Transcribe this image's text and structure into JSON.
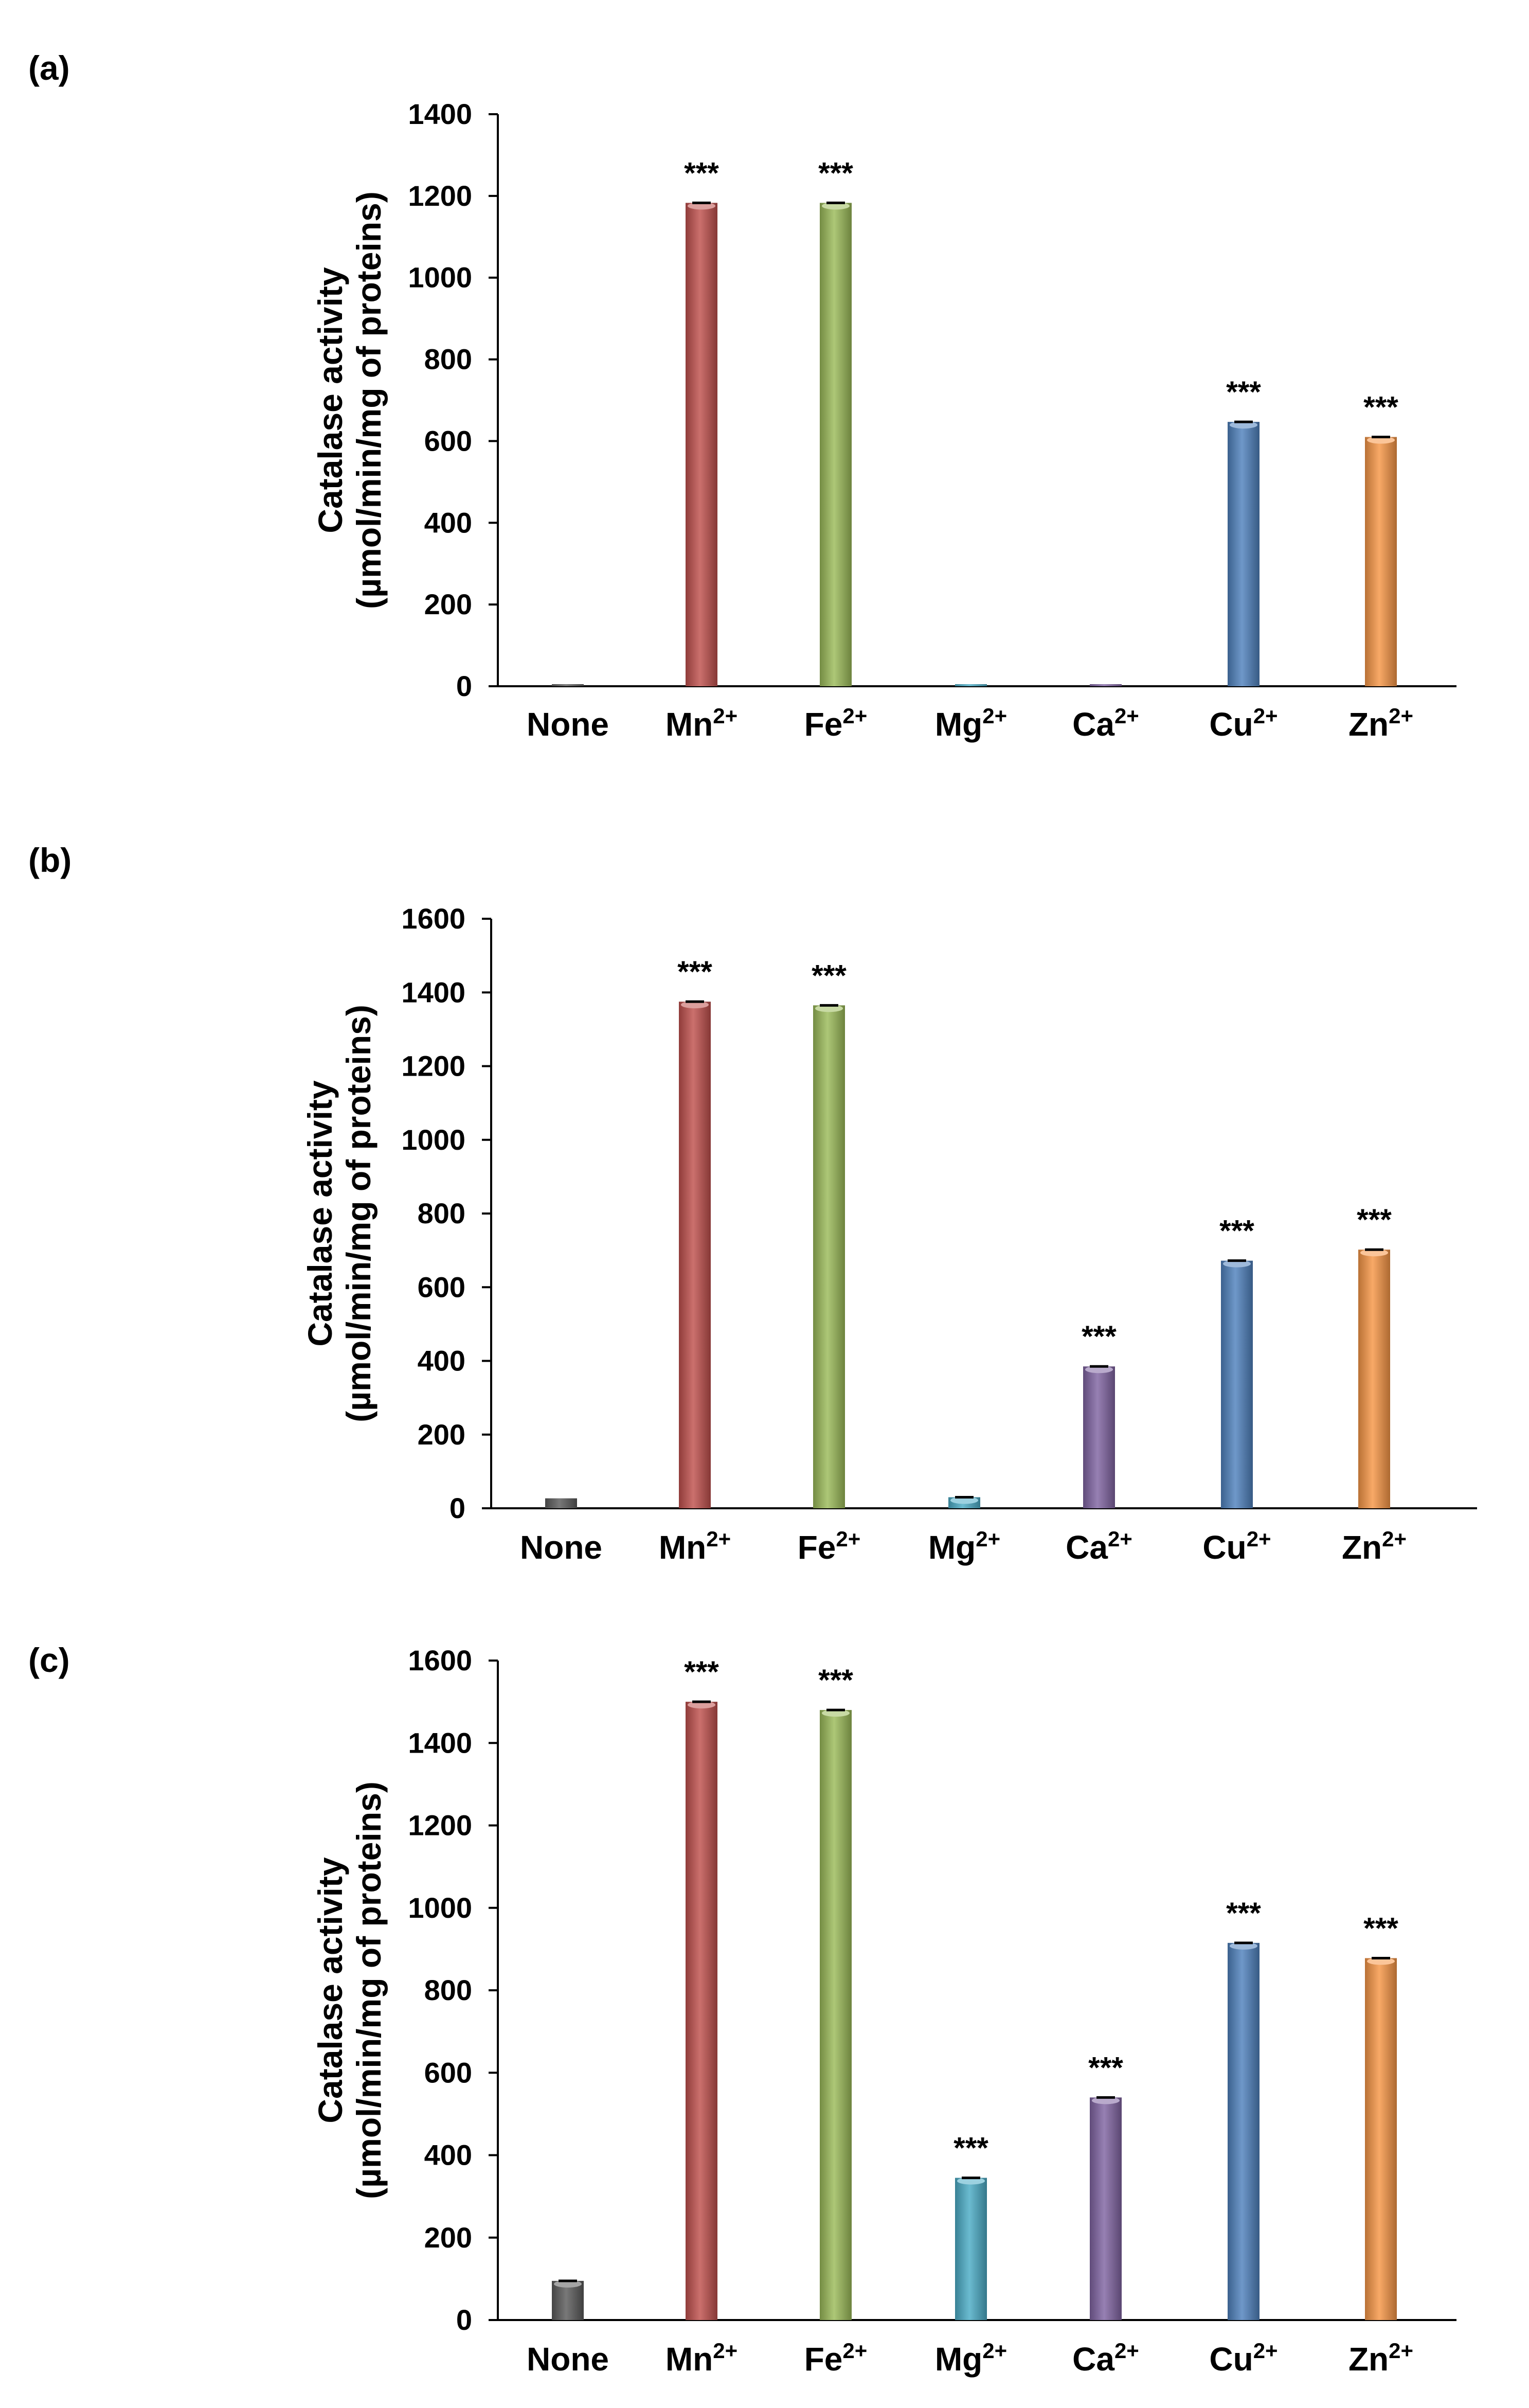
{
  "chart_data": [
    {
      "type": "bar",
      "panel": "(a)",
      "title": "",
      "xlabel": "",
      "ylabel": [
        "Catalase activity",
        "(µmol/min/mg of proteins)"
      ],
      "ylim": [
        0,
        1400
      ],
      "yticks": [
        0,
        200,
        400,
        600,
        800,
        1000,
        1200,
        1400
      ],
      "categories": [
        {
          "base": "None",
          "sup": ""
        },
        {
          "base": "Mn",
          "sup": "2+"
        },
        {
          "base": "Fe",
          "sup": "2+"
        },
        {
          "base": "Mg",
          "sup": "2+"
        },
        {
          "base": "Ca",
          "sup": "2+"
        },
        {
          "base": "Cu",
          "sup": "2+"
        },
        {
          "base": "Zn",
          "sup": "2+"
        }
      ],
      "values": [
        2,
        1183,
        1183,
        2,
        2,
        647,
        610
      ],
      "significance": [
        "",
        "***",
        "***",
        "",
        "",
        "***",
        "***"
      ]
    },
    {
      "type": "bar",
      "panel": "(b)",
      "title": "",
      "xlabel": "",
      "ylabel": [
        "Catalase activity",
        "(µmol/min/mg of proteins)"
      ],
      "ylim": [
        0,
        1600
      ],
      "yticks": [
        0,
        200,
        400,
        600,
        800,
        1000,
        1200,
        1400,
        1600
      ],
      "categories": [
        {
          "base": "None",
          "sup": ""
        },
        {
          "base": "Mn",
          "sup": "2+"
        },
        {
          "base": "Fe",
          "sup": "2+"
        },
        {
          "base": "Mg",
          "sup": "2+"
        },
        {
          "base": "Ca",
          "sup": "2+"
        },
        {
          "base": "Cu",
          "sup": "2+"
        },
        {
          "base": "Zn",
          "sup": "2+"
        }
      ],
      "values": [
        27,
        1375,
        1365,
        30,
        385,
        672,
        702
      ],
      "significance": [
        "",
        "***",
        "***",
        "",
        "***",
        "***",
        "***"
      ]
    },
    {
      "type": "bar",
      "panel": "(c)",
      "title": "",
      "xlabel": "",
      "ylabel": [
        "Catalase activity",
        "(µmol/min/mg of proteins)"
      ],
      "ylim": [
        0,
        1600
      ],
      "yticks": [
        0,
        200,
        400,
        600,
        800,
        1000,
        1200,
        1400,
        1600
      ],
      "categories": [
        {
          "base": "None",
          "sup": ""
        },
        {
          "base": "Mn",
          "sup": "2+"
        },
        {
          "base": "Fe",
          "sup": "2+"
        },
        {
          "base": "Mg",
          "sup": "2+"
        },
        {
          "base": "Ca",
          "sup": "2+"
        },
        {
          "base": "Cu",
          "sup": "2+"
        },
        {
          "base": "Zn",
          "sup": "2+"
        }
      ],
      "values": [
        95,
        1500,
        1480,
        345,
        540,
        915,
        878
      ],
      "significance": [
        "",
        "***",
        "***",
        "***",
        "***",
        "***",
        "***"
      ]
    }
  ],
  "colors": {
    "None": "#5a5a5a",
    "Mn": "#c0504d",
    "Fe": "#9bbb59",
    "Mg": "#4bacc6",
    "Ca": "#8064a2",
    "Cu": "#4f81bd",
    "Zn": "#f79646"
  }
}
